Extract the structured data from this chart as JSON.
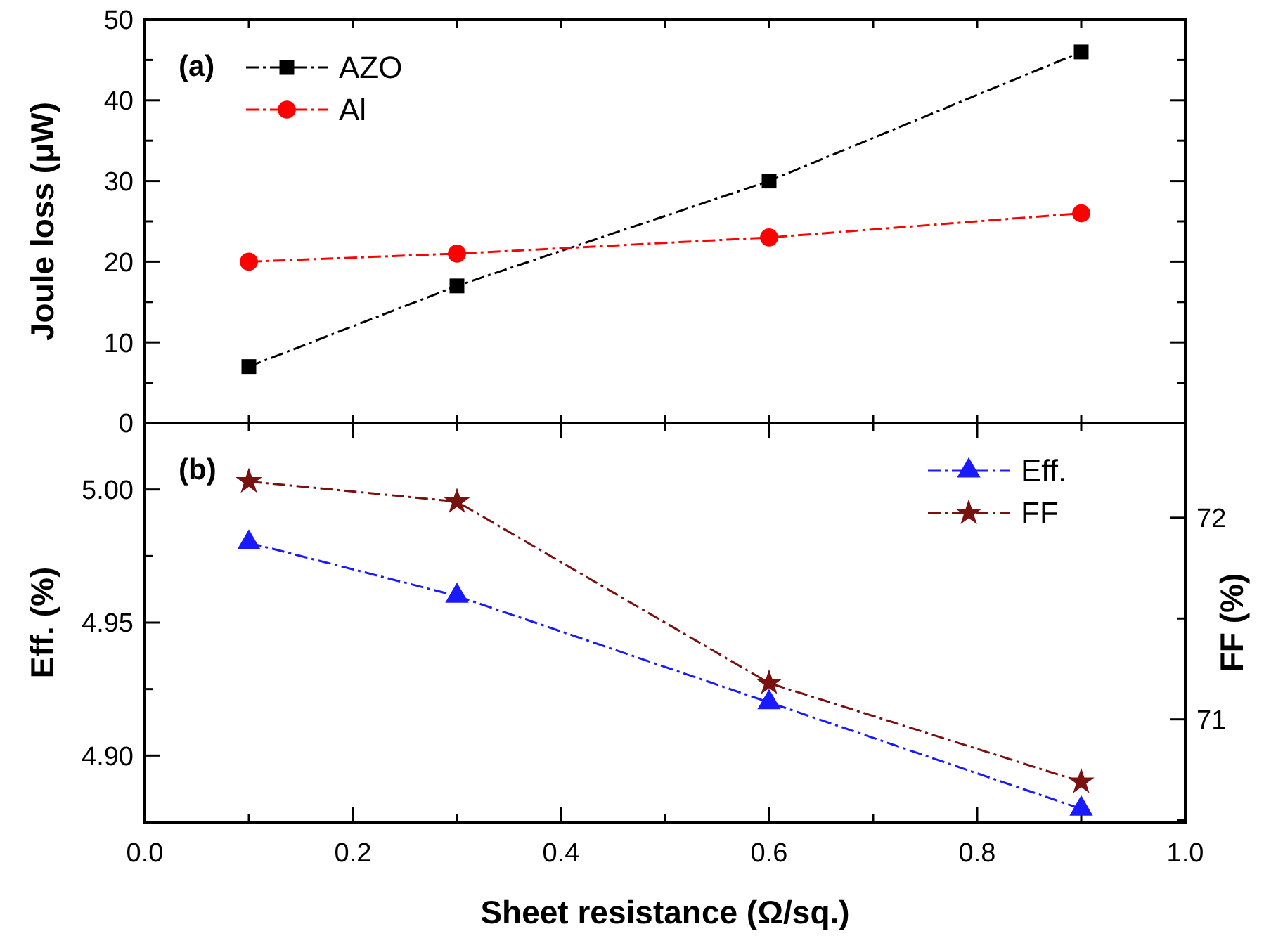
{
  "chart_data": [
    {
      "type": "line",
      "ylabel": "Joule loss (μW)",
      "x": [
        0.1,
        0.3,
        0.6,
        0.9
      ],
      "xlim": [
        0,
        1
      ],
      "xticks": [
        {
          "value": 0,
          "label": null
        },
        {
          "value": 0.1,
          "label": null
        },
        {
          "value": 0.2,
          "label": null
        },
        {
          "value": 0.3,
          "label": null
        },
        {
          "value": 0.4,
          "label": null
        },
        {
          "value": 0.5,
          "label": null
        },
        {
          "value": 0.6,
          "label": null
        },
        {
          "value": 0.7,
          "label": null
        },
        {
          "value": 0.8,
          "label": null
        },
        {
          "value": 0.9,
          "label": null
        },
        {
          "value": 1,
          "label": null
        }
      ],
      "ylim": [
        0,
        50
      ],
      "yticks": [
        0,
        {
          "value": 5,
          "label": null
        },
        10,
        {
          "value": 15,
          "label": null
        },
        20,
        {
          "value": 25,
          "label": null
        },
        30,
        {
          "value": 35,
          "label": null
        },
        40,
        {
          "value": 45,
          "label": null
        },
        50
      ],
      "tick_labels": "y",
      "legend": "top left",
      "line_style": "dashed",
      "annotations": [
        "(a)"
      ],
      "series": [
        {
          "name": "AZO",
          "color": "#000000",
          "marker": "square",
          "values": [
            7,
            17,
            30,
            46
          ]
        },
        {
          "name": "Al",
          "color": "#ff0000",
          "marker": "circle",
          "values": [
            20,
            21,
            23,
            26
          ]
        }
      ]
    },
    {
      "type": "line",
      "xlabel": "Sheet resistance (Ω/sq.)",
      "ylabel": "Eff. (%)",
      "y2label": "FF (%)",
      "x": [
        0.1,
        0.3,
        0.6,
        0.9
      ],
      "xlim": [
        0,
        1
      ],
      "xticks": [
        {
          "value": 0,
          "label": "0.0"
        },
        {
          "value": 0.1,
          "label": null
        },
        0.2,
        {
          "value": 0.3,
          "label": null
        },
        0.4,
        {
          "value": 0.5,
          "label": null
        },
        0.6,
        {
          "value": 0.7,
          "label": null
        },
        0.8,
        {
          "value": 0.9,
          "label": null
        },
        {
          "value": 1,
          "label": "1.0"
        }
      ],
      "ylim": [
        4.875,
        5.025
      ],
      "yticks": [
        {
          "value": 4.9,
          "label": "4.90"
        },
        {
          "value": 4.925,
          "label": null
        },
        {
          "value": 4.95,
          "label": "4.95"
        },
        {
          "value": 4.975,
          "label": null
        },
        {
          "value": 5,
          "label": "5.00"
        }
      ],
      "y2lim": [
        70.49,
        72.47
      ],
      "y2ticks": [
        {
          "value": 70.5,
          "label": null
        },
        71,
        {
          "value": 71.5,
          "label": null
        },
        72
      ],
      "legend": "top right",
      "line_style": "dashed",
      "annotations": [
        "(b)"
      ],
      "series": [
        {
          "name": "Eff.",
          "color": "#1a1aff",
          "marker": "triangle",
          "values": [
            4.98,
            4.96,
            4.92,
            4.88
          ]
        },
        {
          "name": "FF",
          "color": "#7b1010",
          "marker": "star",
          "axis": "y2",
          "values": [
            72.18,
            72.08,
            71.18,
            70.69
          ]
        }
      ]
    }
  ]
}
